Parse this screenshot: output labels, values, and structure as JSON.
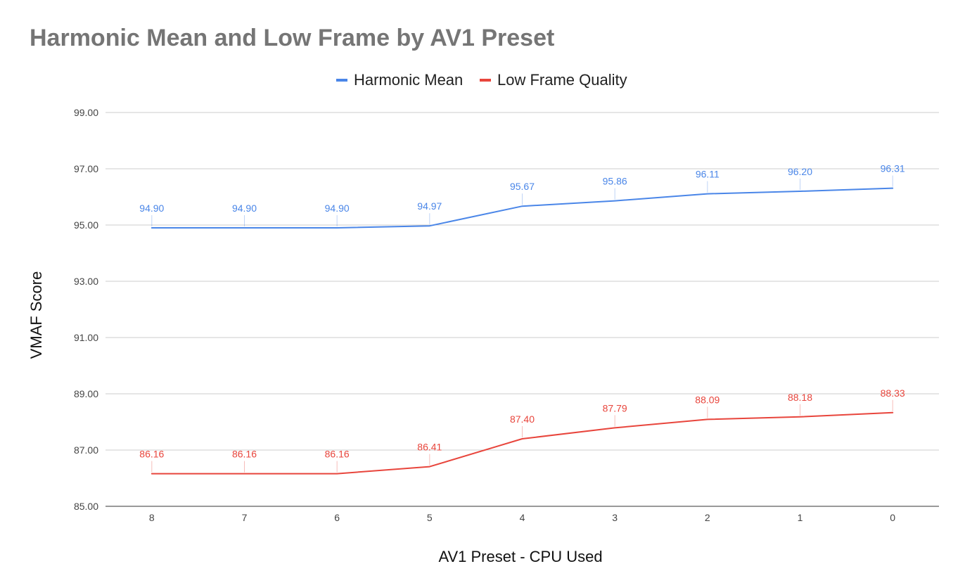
{
  "chart_data": {
    "type": "line",
    "title": "Harmonic Mean and Low Frame by AV1 Preset",
    "xlabel": "AV1 Preset - CPU Used",
    "ylabel": "VMAF Score",
    "categories": [
      "8",
      "7",
      "6",
      "5",
      "4",
      "3",
      "2",
      "1",
      "0"
    ],
    "ylim": [
      85,
      99
    ],
    "yticks": [
      "85.00",
      "87.00",
      "89.00",
      "91.00",
      "93.00",
      "95.00",
      "97.00",
      "99.00"
    ],
    "grid": true,
    "legend_position": "top",
    "series": [
      {
        "name": "Harmonic Mean",
        "color": "#4a86e8",
        "values": [
          94.9,
          94.9,
          94.9,
          94.97,
          95.67,
          95.86,
          96.11,
          96.2,
          96.31
        ],
        "labels": [
          "94.90",
          "94.90",
          "94.90",
          "94.97",
          "95.67",
          "95.86",
          "96.11",
          "96.20",
          "96.31"
        ]
      },
      {
        "name": "Low Frame Quality",
        "color": "#e8453c",
        "values": [
          86.16,
          86.16,
          86.16,
          86.41,
          87.4,
          87.79,
          88.09,
          88.18,
          88.33
        ],
        "labels": [
          "86.16",
          "86.16",
          "86.16",
          "86.41",
          "87.40",
          "87.79",
          "88.09",
          "88.18",
          "88.33"
        ]
      }
    ]
  }
}
